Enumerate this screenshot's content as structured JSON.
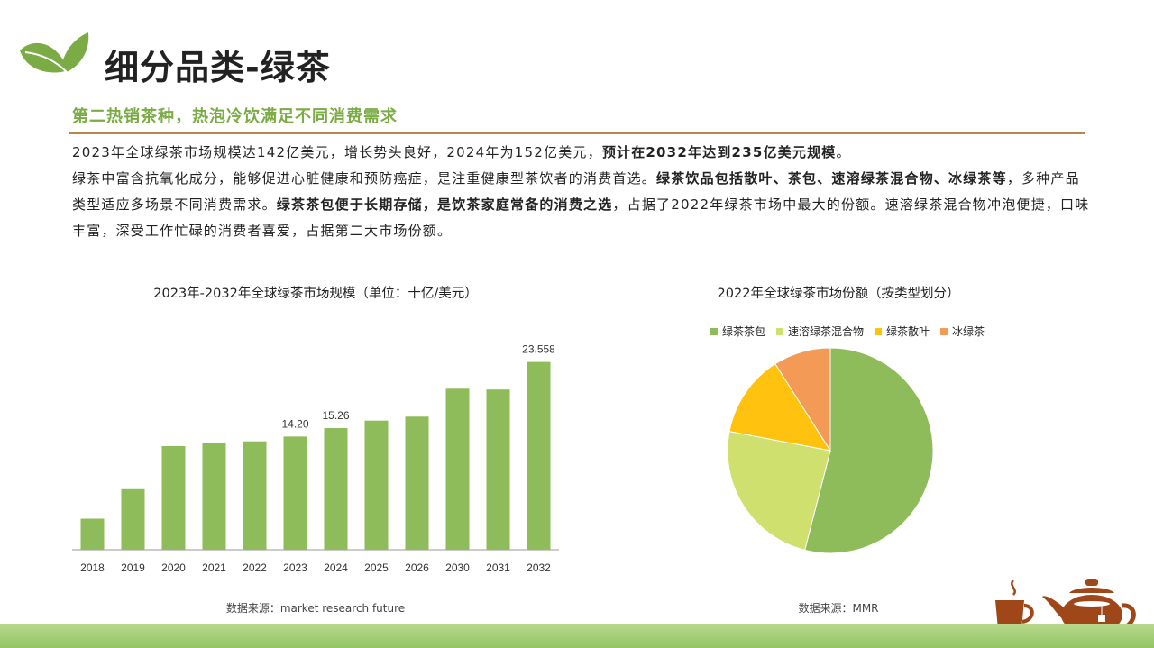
{
  "header": {
    "title": "细分品类-绿茶",
    "subtitle": "第二热销茶种，热泡冷饮满足不同消费需求"
  },
  "paragraph": {
    "p1a": "2023年全球绿茶市场规模达142亿美元，增长势头良好，2024年为152亿美元，",
    "p1b": "预计在2032年达到235亿美元规模",
    "p1c": "。",
    "p2a": "绿茶中富含抗氧化成分，能够促进心脏健康和预防癌症，是注重健康型茶饮者的消费首选。",
    "p2b": "绿茶饮品包括散叶、茶包、速溶绿茶混合物、冰绿茶等",
    "p2c": "，多种产品类型适应多场景不同消费需求。",
    "p2d": "绿茶茶包便于长期存储，是饮茶家庭常备的消费之选",
    "p2e": "，占据了2022年绿茶市场中最大的份额。速溶绿茶混合物冲泡便捷，口味丰富，深受工作忙碌的消费者喜爱，占据第二大市场份额。"
  },
  "bar_source": "数据来源：market research future",
  "pie_source": "数据来源：MMR",
  "chart_data": [
    {
      "type": "bar",
      "title": "2023年-2032年全球绿茶市场规模（单位：十亿/美元）",
      "categories": [
        "2018",
        "2019",
        "2020",
        "2021",
        "2022",
        "2023",
        "2024",
        "2025",
        "2026",
        "2030",
        "2031",
        "2032"
      ],
      "values": [
        3.9,
        7.6,
        13.0,
        13.4,
        13.6,
        14.2,
        15.26,
        16.2,
        16.7,
        20.2,
        20.1,
        23.558
      ],
      "data_labels": [
        "",
        "",
        "",
        "",
        "",
        "14.20",
        "15.26",
        "",
        "",
        "",
        "",
        "23.558"
      ],
      "ylim": [
        0,
        26
      ],
      "color": "#8fbc5a",
      "grid": false
    },
    {
      "type": "pie",
      "title": "2022年全球绿茶市场份额（按类型划分）",
      "legend_position": "top",
      "slices": [
        {
          "name": "绿茶茶包",
          "value": 54,
          "color": "#8fbc5a"
        },
        {
          "name": "速溶绿茶混合物",
          "value": 24,
          "color": "#cfe06e"
        },
        {
          "name": "绿茶散叶",
          "value": 13,
          "color": "#ffc20e"
        },
        {
          "name": "冰绿茶",
          "value": 9,
          "color": "#f29a56"
        }
      ]
    }
  ]
}
